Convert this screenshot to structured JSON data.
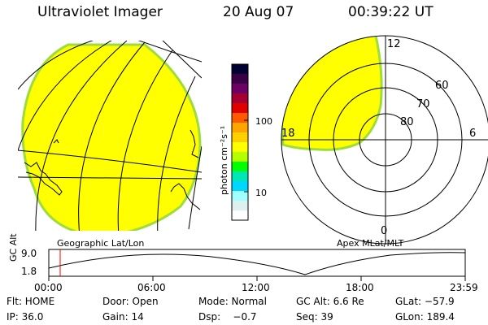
{
  "header": {
    "title": "Ultraviolet Imager",
    "date": "20 Aug 07",
    "time": "00:39:22 UT"
  },
  "colorbar": {
    "unit_label": "photon cm⁻²s⁻¹",
    "tick_100": "100",
    "tick_10": "10",
    "colors": [
      "#000033",
      "#3a0046",
      "#6c0064",
      "#a40032",
      "#e00000",
      "#ff5a00",
      "#ffa500",
      "#ffd000",
      "#ffff00",
      "#b4ff00",
      "#00ff00",
      "#00e6b4",
      "#00d7ff",
      "#a0ffff",
      "#dcf0f0",
      "#ffffff"
    ]
  },
  "geo_panel": {
    "label": "Geographic Lat/Lon",
    "fill_color": "#ffff00"
  },
  "polar_panel": {
    "label": "Apex MLat/MLT",
    "mlt_labels": {
      "top": "12",
      "left": "18",
      "right": "6",
      "bottom": "0"
    },
    "mlat_labels": [
      "60",
      "70",
      "80"
    ]
  },
  "altitude_plot": {
    "ylabel": "GC Alt",
    "ymax": "9.0",
    "ymin": "1.8",
    "time_ticks": [
      "00:00",
      "06:00",
      "12:00",
      "18:00",
      "23:59"
    ],
    "current_time_marker_color": "#ff0000"
  },
  "status": {
    "flt": "Flt: HOME",
    "door": "Door: Open",
    "mode": "Mode: Normal",
    "gc_alt": "GC Alt: 6.6 Re",
    "glat": "GLat: −57.9",
    "ip": "IP: 36.0",
    "gain": "Gain: 14",
    "dsp": "Dsp:    −0.7",
    "seq": "Seq: 39",
    "glon": "GLon: 189.4"
  }
}
